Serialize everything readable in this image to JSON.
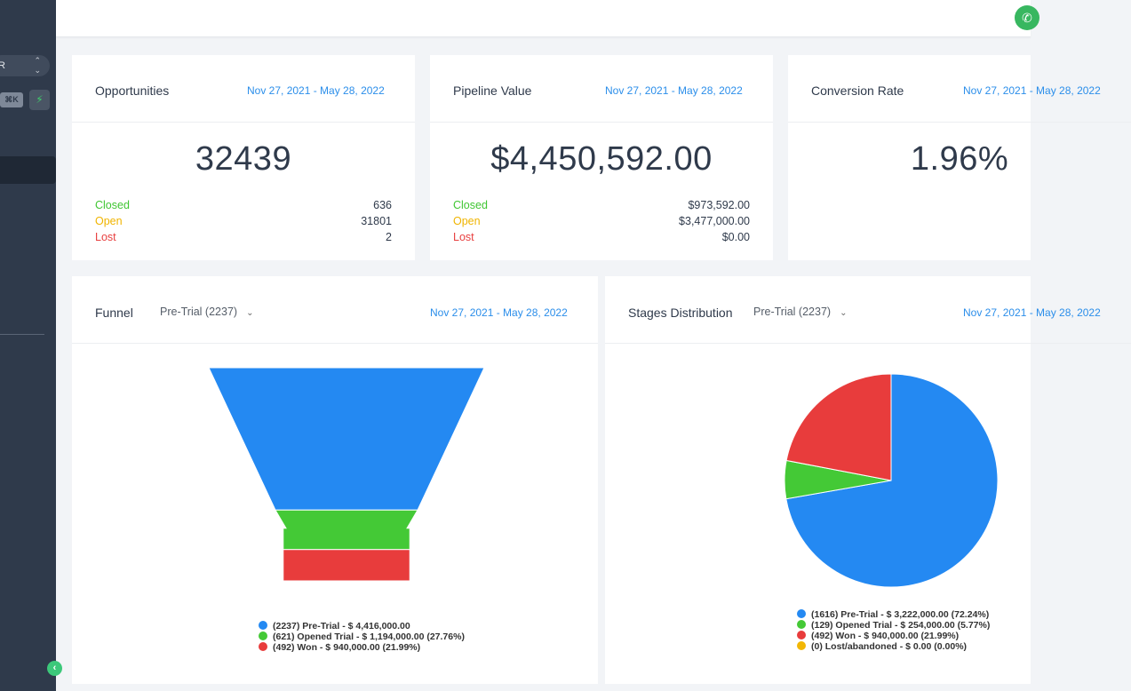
{
  "sidebar": {
    "location_label": "R",
    "shortcut": "⌘K"
  },
  "cards": {
    "opportunities": {
      "title": "Opportunities",
      "date_range": "Nov 27, 2021 - May 28, 2022",
      "value": "32439",
      "rows": [
        {
          "label": "Closed",
          "value": "636"
        },
        {
          "label": "Open",
          "value": "31801"
        },
        {
          "label": "Lost",
          "value": "2"
        }
      ]
    },
    "pipeline": {
      "title": "Pipeline Value",
      "date_range": "Nov 27, 2021 - May 28, 2022",
      "value": "$4,450,592.00",
      "rows": [
        {
          "label": "Closed",
          "value": "$973,592.00"
        },
        {
          "label": "Open",
          "value": "$3,477,000.00"
        },
        {
          "label": "Lost",
          "value": "$0.00"
        }
      ]
    },
    "conversion": {
      "title": "Conversion Rate",
      "date_range": "Nov 27, 2021 - May 28, 2022",
      "value": "1.96%"
    }
  },
  "funnel": {
    "title": "Funnel",
    "pipeline_select": "Pre-Trial (2237)",
    "date_range": "Nov 27, 2021 - May 28, 2022"
  },
  "stages": {
    "title": "Stages Distribution",
    "pipeline_select": "Pre-Trial (2237)",
    "date_range": "Nov 27, 2021 - May 28, 2022"
  },
  "colors": {
    "pretrial": "#2489f2",
    "opened": "#44c936",
    "won": "#e83c3c",
    "lost": "#f2b705"
  },
  "chart_data": [
    {
      "type": "funnel",
      "categories": [
        "(2237) Pre-Trial - $ 4,416,000.00",
        "(621) Opened Trial - $ 1,194,000.00 (27.76%)",
        "(492) Won - $ 940,000.00 (21.99%)"
      ],
      "values": [
        2237,
        621,
        492
      ]
    },
    {
      "type": "pie",
      "categories": [
        "(1616) Pre-Trial - $ 3,222,000.00 (72.24%)",
        "(129) Opened Trial - $ 254,000.00 (5.77%)",
        "(492) Won - $ 940,000.00 (21.99%)",
        "(0) Lost/abandoned - $ 0.00 (0.00%)"
      ],
      "values": [
        72.24,
        5.77,
        21.99,
        0.0
      ]
    }
  ]
}
